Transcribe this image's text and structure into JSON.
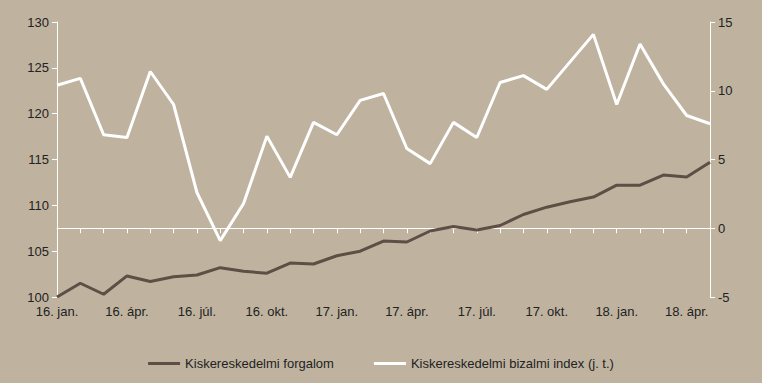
{
  "chart_data": {
    "type": "line",
    "categories": [
      "16. jan.",
      null,
      null,
      "16. ápr.",
      null,
      null,
      "16. júl.",
      null,
      null,
      "16. okt.",
      null,
      null,
      "17. jan.",
      null,
      null,
      "17. ápr.",
      null,
      null,
      "17. júl.",
      null,
      null,
      "17. okt.",
      null,
      null,
      "18. jan.",
      null,
      null,
      "18. ápr.",
      null
    ],
    "series": [
      {
        "name": "Kiskereskedelmi forgalom",
        "color": "#5e4e45",
        "axis": "y",
        "values": [
          100,
          101.5,
          100.3,
          102.3,
          101.7,
          102.2,
          102.4,
          103.2,
          102.8,
          102.6,
          103.7,
          103.6,
          104.5,
          105,
          106.1,
          106,
          107.2,
          107.7,
          107.3,
          107.8,
          109,
          109.8,
          110.4,
          110.9,
          112.2,
          112.2,
          113.3,
          113.1,
          114.7
        ]
      },
      {
        "name": "Kiskereskedelmi bizalmi index (j. t.)",
        "color": "#ffffff",
        "axis": "y2",
        "values": [
          10.4,
          10.9,
          6.8,
          6.6,
          11.4,
          9.0,
          2.6,
          -0.9,
          1.8,
          6.7,
          3.7,
          7.7,
          6.8,
          9.3,
          9.8,
          5.8,
          4.7,
          7.7,
          6.6,
          10.6,
          11.1,
          10.1,
          12.1,
          14.1,
          9.0,
          13.4,
          10.5,
          8.2,
          7.6
        ]
      }
    ],
    "ylim": [
      100,
      130
    ],
    "yticks": [
      100,
      105,
      110,
      115,
      120,
      125,
      130
    ],
    "y2lim": [
      -5,
      15
    ],
    "y2ticks": [
      -5,
      0,
      5,
      10,
      15
    ],
    "grid": false,
    "legend": "bottom"
  }
}
